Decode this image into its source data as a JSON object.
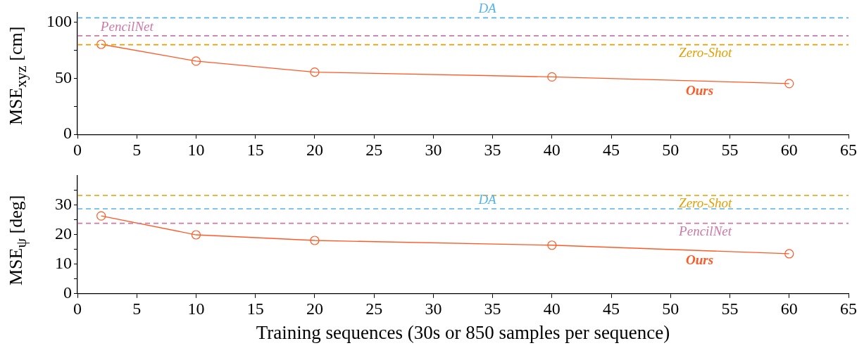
{
  "chart_data": [
    {
      "type": "line",
      "ylabel": "MSE$_{xyz}$ [cm]",
      "x": [
        2,
        10,
        20,
        40,
        60
      ],
      "series": [
        {
          "name": "Ours",
          "color": "#ff5a26",
          "values": [
            80.4,
            65.4,
            55.6,
            51.3,
            45.4
          ]
        }
      ],
      "ref_lines": [
        {
          "axis": "y",
          "value": 104,
          "label": "DA",
          "color": "#56b4e9",
          "line_style": "dashed"
        },
        {
          "axis": "y",
          "value": 88,
          "label": "PencilNet",
          "color": "#cc79a7",
          "line_style": "dashed"
        },
        {
          "axis": "y",
          "value": 80,
          "label": "Zero-Shot",
          "color": "#e69f00",
          "line_style": "dashed"
        }
      ],
      "xlim": [
        0,
        65
      ],
      "xticks": [
        0,
        5,
        10,
        15,
        20,
        25,
        30,
        35,
        40,
        45,
        50,
        55,
        60,
        65
      ],
      "ylim": [
        0,
        109
      ],
      "yticks": [
        0,
        {
          "value": 25,
          "label": null
        },
        50,
        {
          "value": 75,
          "label": null
        },
        100
      ],
      "marker": "circle",
      "line_style": "solid",
      "grid": false,
      "legend": false
    },
    {
      "type": "line",
      "ylabel": "MSE$_{ψ}$ [deg]",
      "xlabel": "Training sequences (30s or 850 samples per sequence)",
      "x": [
        2,
        10,
        20,
        40,
        60
      ],
      "series": [
        {
          "name": "Ours",
          "color": "#ff5a26",
          "values": [
            26.3,
            19.9,
            18.0,
            16.4,
            13.5
          ]
        }
      ],
      "ref_lines": [
        {
          "axis": "y",
          "value": 33.2,
          "label": "Zero-Shot",
          "color": "#e69f00",
          "line_style": "dashed"
        },
        {
          "axis": "y",
          "value": 28.7,
          "label": "DA",
          "color": "#56b4e9",
          "line_style": "dashed"
        },
        {
          "axis": "y",
          "value": 23.8,
          "label": "PencilNet",
          "color": "#cc79a7",
          "line_style": "dashed"
        }
      ],
      "xlim": [
        0,
        65
      ],
      "xticks": [
        0,
        5,
        10,
        15,
        20,
        25,
        30,
        35,
        40,
        45,
        50,
        55,
        60,
        65
      ],
      "ylim": [
        0,
        40
      ],
      "yticks": [
        0,
        {
          "value": 5,
          "label": null
        },
        10,
        {
          "value": 15,
          "label": null
        },
        20,
        {
          "value": 25,
          "label": null
        },
        30,
        {
          "value": 35,
          "label": null
        }
      ],
      "marker": "circle",
      "line_style": "solid",
      "grid": false,
      "legend": false
    }
  ]
}
